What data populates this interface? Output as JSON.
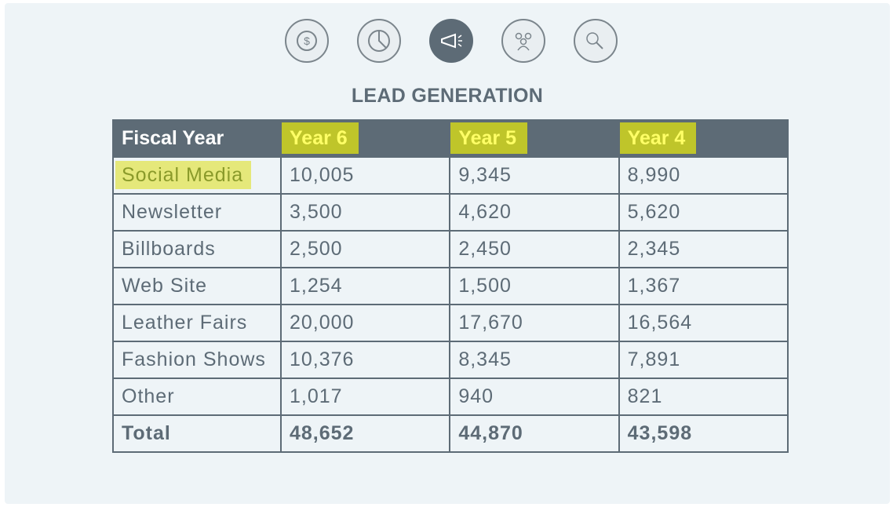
{
  "title": "LEAD GENERATION",
  "table": {
    "header": [
      "Fiscal Year",
      "Year 6",
      "Year 5",
      "Year 4"
    ],
    "rows": [
      [
        "Social Media",
        "10,005",
        "9,345",
        "8,990"
      ],
      [
        "Newsletter",
        "3,500",
        "4,620",
        "5,620"
      ],
      [
        "Billboards",
        "2,500",
        "2,450",
        "2,345"
      ],
      [
        "Web Site",
        "1,254",
        "1,500",
        "1,367"
      ],
      [
        "Leather Fairs",
        "20,000",
        "17,670",
        "16,564"
      ],
      [
        "Fashion Shows",
        "10,376",
        "8,345",
        "7,891"
      ],
      [
        "Other",
        "1,017",
        "940",
        "821"
      ],
      [
        "Total",
        "48,652",
        "44,870",
        "43,598"
      ]
    ]
  }
}
